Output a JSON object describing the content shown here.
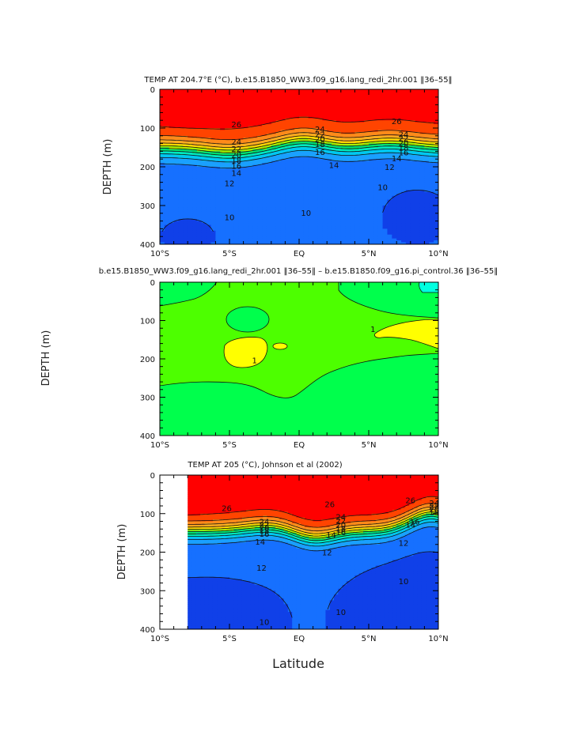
{
  "figure": {
    "xlabel": "Latitude",
    "ylabel": "DEPTH (m)"
  },
  "chart_data": [
    {
      "type": "contour",
      "title": "TEMP AT 204.7°E (°C), b.e15.B1850_WW3.f09_g16.lang_redi_2hr.001 ‖36–55‖",
      "xlabel": "",
      "ylabel": "DEPTH (m)",
      "xlim": [
        -10,
        10
      ],
      "ylim": [
        400,
        0
      ],
      "x_ticks": [
        -10,
        -5,
        0,
        5,
        10
      ],
      "x_tick_labels": [
        "10°S",
        "5°S",
        "EQ",
        "5°N",
        "10°N"
      ],
      "y_ticks": [
        0,
        100,
        200,
        300,
        400
      ],
      "y_tick_labels": [
        "0",
        "100",
        "200",
        "300",
        "400"
      ],
      "data_start_lat": -10,
      "base_depth": 150,
      "thermocline_width": 60,
      "surface_temp": 28.5,
      "deep_temp": 8.5,
      "levels": [
        8,
        10,
        12,
        14,
        16,
        18,
        20,
        22,
        24,
        26,
        28
      ],
      "contour_labels": [
        {
          "text": "26",
          "lat": -4.5,
          "depth": 90
        },
        {
          "text": "24",
          "lat": -4.5,
          "depth": 135
        },
        {
          "text": "22",
          "lat": -4.5,
          "depth": 153
        },
        {
          "text": "20",
          "lat": -4.5,
          "depth": 168
        },
        {
          "text": "18",
          "lat": -4.5,
          "depth": 183
        },
        {
          "text": "16",
          "lat": -4.5,
          "depth": 197
        },
        {
          "text": "14",
          "lat": -4.5,
          "depth": 215
        },
        {
          "text": "12",
          "lat": -5,
          "depth": 242
        },
        {
          "text": "10",
          "lat": -5,
          "depth": 330
        },
        {
          "text": "10",
          "lat": 0.5,
          "depth": 318
        },
        {
          "text": "24",
          "lat": 1.5,
          "depth": 102
        },
        {
          "text": "22",
          "lat": 1.5,
          "depth": 115
        },
        {
          "text": "20",
          "lat": 1.5,
          "depth": 128
        },
        {
          "text": "18",
          "lat": 1.5,
          "depth": 141
        },
        {
          "text": "16",
          "lat": 1.5,
          "depth": 161
        },
        {
          "text": "14",
          "lat": 2.5,
          "depth": 195
        },
        {
          "text": "26",
          "lat": 7,
          "depth": 82
        },
        {
          "text": "24",
          "lat": 7.5,
          "depth": 115
        },
        {
          "text": "22",
          "lat": 7.5,
          "depth": 126
        },
        {
          "text": "20",
          "lat": 7.5,
          "depth": 138
        },
        {
          "text": "18",
          "lat": 7.5,
          "depth": 150
        },
        {
          "text": "16",
          "lat": 7.5,
          "depth": 162
        },
        {
          "text": "14",
          "lat": 7,
          "depth": 178
        },
        {
          "text": "12",
          "lat": 6.5,
          "depth": 200
        },
        {
          "text": "10",
          "lat": 6,
          "depth": 252
        }
      ]
    },
    {
      "type": "contour",
      "title": "b.e15.B1850_WW3.f09_g16.lang_redi_2hr.001 ‖36–55‖ – b.e15.B1850.f09_g16.pi_control.36 ‖36–55‖",
      "xlabel": "",
      "ylabel": "DEPTH (m)",
      "xlim": [
        -10,
        10
      ],
      "ylim": [
        400,
        0
      ],
      "x_ticks": [
        -10,
        -5,
        0,
        5,
        10
      ],
      "x_tick_labels": [
        "10°S",
        "5°S",
        "EQ",
        "5°N",
        "10°N"
      ],
      "y_ticks": [
        0,
        100,
        200,
        300,
        400
      ],
      "y_tick_labels": [
        "0",
        "100",
        "200",
        "300",
        "400"
      ],
      "levels": [
        -1,
        0,
        1
      ],
      "contour_labels": [
        {
          "text": "1",
          "lat": -3.2,
          "depth": 203
        },
        {
          "text": "1",
          "lat": 5.3,
          "depth": 122
        }
      ]
    },
    {
      "type": "contour",
      "title": "TEMP AT 205 (°C), Johnson et al (2002)",
      "xlabel": "Latitude",
      "ylabel": "DEPTH (m)",
      "xlim": [
        -10,
        10
      ],
      "ylim": [
        400,
        0
      ],
      "x_ticks": [
        -10,
        -5,
        0,
        5,
        10
      ],
      "x_tick_labels": [
        "10°S",
        "5°S",
        "EQ",
        "5°N",
        "10°N"
      ],
      "y_ticks": [
        0,
        100,
        200,
        300,
        400
      ],
      "y_tick_labels": [
        "0",
        "100",
        "200",
        "300",
        "400"
      ],
      "data_start_lat": -8,
      "base_depth": 145,
      "thermocline_width": 55,
      "surface_temp": 29,
      "deep_temp": 8,
      "levels": [
        8,
        10,
        12,
        14,
        16,
        18,
        20,
        22,
        24,
        26,
        28
      ],
      "contour_labels": [
        {
          "text": "26",
          "lat": -5.2,
          "depth": 85
        },
        {
          "text": "24",
          "lat": -2.5,
          "depth": 120
        },
        {
          "text": "22",
          "lat": -2.5,
          "depth": 128
        },
        {
          "text": "20",
          "lat": -2.5,
          "depth": 136
        },
        {
          "text": "18",
          "lat": -2.5,
          "depth": 144
        },
        {
          "text": "16",
          "lat": -2.5,
          "depth": 152
        },
        {
          "text": "14",
          "lat": -2.8,
          "depth": 172
        },
        {
          "text": "12",
          "lat": -2.7,
          "depth": 240
        },
        {
          "text": "10",
          "lat": -2.5,
          "depth": 380
        },
        {
          "text": "26",
          "lat": 2.2,
          "depth": 75
        },
        {
          "text": "24",
          "lat": 3,
          "depth": 108
        },
        {
          "text": "22",
          "lat": 3,
          "depth": 118
        },
        {
          "text": "20",
          "lat": 3,
          "depth": 128
        },
        {
          "text": "18",
          "lat": 3,
          "depth": 138
        },
        {
          "text": "16",
          "lat": 3,
          "depth": 148
        },
        {
          "text": "14",
          "lat": 2.3,
          "depth": 155
        },
        {
          "text": "12",
          "lat": 2,
          "depth": 200
        },
        {
          "text": "10",
          "lat": 3,
          "depth": 355
        },
        {
          "text": "26",
          "lat": 8,
          "depth": 65
        },
        {
          "text": "24",
          "lat": 9.7,
          "depth": 72
        },
        {
          "text": "22",
          "lat": 9.7,
          "depth": 80
        },
        {
          "text": "20",
          "lat": 9.7,
          "depth": 88
        },
        {
          "text": "18",
          "lat": 9.7,
          "depth": 95
        },
        {
          "text": "16",
          "lat": 8.3,
          "depth": 120
        },
        {
          "text": "14",
          "lat": 8,
          "depth": 128
        },
        {
          "text": "12",
          "lat": 7.5,
          "depth": 175
        },
        {
          "text": "10",
          "lat": 7.5,
          "depth": 275
        }
      ]
    }
  ]
}
